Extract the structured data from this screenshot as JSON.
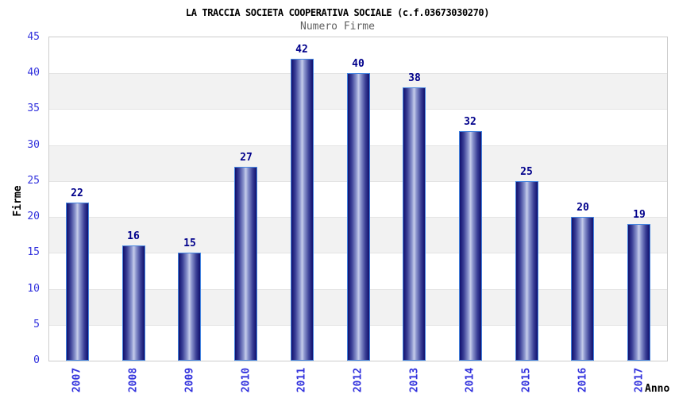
{
  "chart_data": {
    "type": "bar",
    "title": "LA TRACCIA SOCIETA COOPERATIVA SOCIALE (c.f.03673030270)",
    "subtitle": "Numero Firme",
    "categories": [
      "2007",
      "2008",
      "2009",
      "2010",
      "2011",
      "2012",
      "2013",
      "2014",
      "2015",
      "2016",
      "2017"
    ],
    "values": [
      22,
      16,
      15,
      27,
      42,
      40,
      38,
      32,
      25,
      20,
      19
    ],
    "xlabel": "Anno",
    "ylabel": "Firme",
    "ylim": [
      0,
      45
    ],
    "yticks": [
      0,
      5,
      10,
      15,
      20,
      25,
      30,
      35,
      40,
      45
    ],
    "grid": "horizontal-bands-alternating",
    "legend": "none",
    "colors": {
      "bar_dark": "#10106e",
      "bar_mid2": "#3a3f96",
      "bar_mid": "#8d97cf",
      "bar_light": "#c6cdea",
      "bar_border": "#4585e0",
      "tick_label": "#3232dd",
      "value_label": "#00008b",
      "band_gray": "#f2f2f2",
      "band_white": "#ffffff",
      "plot_border": "#cccccc",
      "gridline": "#e4e4e4",
      "title": "#000000",
      "subtitle": "#606060",
      "axis_title": "#000000"
    }
  }
}
